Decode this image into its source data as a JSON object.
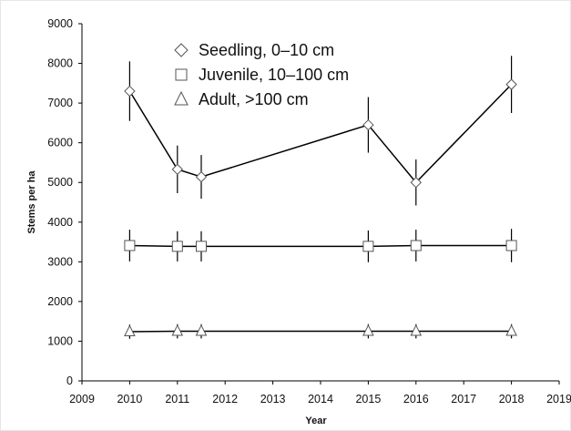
{
  "chart_data": {
    "type": "line",
    "xlabel": "Year",
    "ylabel": "Stems per ha",
    "xlim": [
      2009,
      2019
    ],
    "ylim": [
      0,
      9000
    ],
    "x_ticks": [
      "2009",
      "2010",
      "2011",
      "2012",
      "2013",
      "2014",
      "2015",
      "2016",
      "2017",
      "2018",
      "2019"
    ],
    "y_ticks": [
      "0",
      "1000",
      "2000",
      "3000",
      "4000",
      "5000",
      "6000",
      "7000",
      "8000",
      "9000"
    ],
    "grid": false,
    "legend_position": "top-left",
    "error_bars": true,
    "series": [
      {
        "name": "Seedling, 0–10 cm",
        "marker": "diamond",
        "x": [
          2010,
          2011,
          2011.5,
          2015,
          2016,
          2018
        ],
        "y": [
          7300,
          5330,
          5140,
          6450,
          5000,
          7470
        ],
        "error": [
          750,
          600,
          550,
          700,
          580,
          720
        ]
      },
      {
        "name": "Juvenile, 10–100 cm",
        "marker": "square",
        "x": [
          2010,
          2011,
          2011.5,
          2015,
          2016,
          2018
        ],
        "y": [
          3410,
          3390,
          3390,
          3390,
          3410,
          3410
        ],
        "error": [
          400,
          380,
          380,
          400,
          400,
          420
        ]
      },
      {
        "name": "Adult, >100 cm",
        "marker": "triangle",
        "x": [
          2010,
          2011,
          2011.5,
          2015,
          2016,
          2018
        ],
        "y": [
          1240,
          1250,
          1250,
          1250,
          1250,
          1250
        ],
        "error": [
          180,
          180,
          180,
          180,
          180,
          180
        ]
      }
    ]
  }
}
